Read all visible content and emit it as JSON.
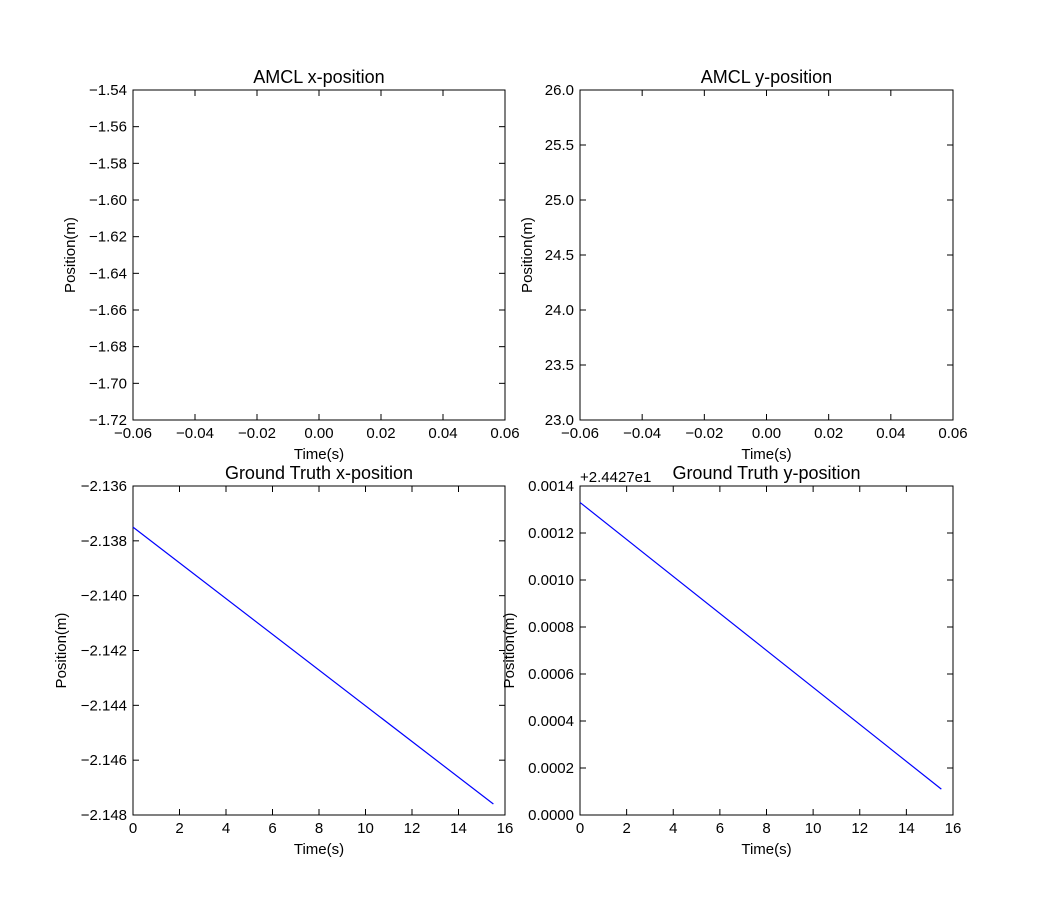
{
  "chart_data": [
    {
      "type": "line",
      "title": "AMCL x-position",
      "xlabel": "Time(s)",
      "ylabel": "Position(m)",
      "xlim": [
        -0.06,
        0.06
      ],
      "ylim": [
        -1.72,
        -1.54
      ],
      "xticks": [
        "−0.06",
        "−0.04",
        "−0.02",
        "0.00",
        "0.02",
        "0.04",
        "0.06"
      ],
      "yticks": [
        "−1.54",
        "−1.56",
        "−1.58",
        "−1.60",
        "−1.62",
        "−1.64",
        "−1.66",
        "−1.68",
        "−1.70",
        "−1.72"
      ],
      "offset_label": "",
      "series": [
        {
          "x": [],
          "y": [],
          "color": "#0000ff"
        }
      ]
    },
    {
      "type": "line",
      "title": "AMCL y-position",
      "xlabel": "Time(s)",
      "ylabel": "Position(m)",
      "xlim": [
        -0.06,
        0.06
      ],
      "ylim": [
        23.0,
        26.0
      ],
      "xticks": [
        "−0.06",
        "−0.04",
        "−0.02",
        "0.00",
        "0.02",
        "0.04",
        "0.06"
      ],
      "yticks": [
        "26.0",
        "25.5",
        "25.0",
        "24.5",
        "24.0",
        "23.5",
        "23.0"
      ],
      "offset_label": "",
      "series": [
        {
          "x": [],
          "y": [],
          "color": "#0000ff"
        }
      ]
    },
    {
      "type": "line",
      "title": "Ground Truth x-position",
      "xlabel": "Time(s)",
      "ylabel": "Position(m)",
      "xlim": [
        0,
        16
      ],
      "ylim": [
        -2.148,
        -2.136
      ],
      "xticks": [
        "0",
        "2",
        "4",
        "6",
        "8",
        "10",
        "12",
        "14",
        "16"
      ],
      "yticks": [
        "−2.136",
        "−2.138",
        "−2.140",
        "−2.142",
        "−2.144",
        "−2.146",
        "−2.148"
      ],
      "offset_label": "",
      "series": [
        {
          "x": [
            0,
            15.5
          ],
          "y": [
            -2.1375,
            -2.1476
          ],
          "color": "#0000ff"
        }
      ]
    },
    {
      "type": "line",
      "title": "Ground Truth y-position",
      "xlabel": "Time(s)",
      "ylabel": "Position(m)",
      "xlim": [
        0,
        16
      ],
      "ylim": [
        0.0,
        0.0014
      ],
      "xticks": [
        "0",
        "2",
        "4",
        "6",
        "8",
        "10",
        "12",
        "14",
        "16"
      ],
      "yticks": [
        "0.0014",
        "0.0012",
        "0.0010",
        "0.0008",
        "0.0006",
        "0.0004",
        "0.0002",
        "0.0000"
      ],
      "offset_label": "+2.4427e1",
      "series": [
        {
          "x": [
            0,
            15.5
          ],
          "y": [
            0.00133,
            0.00011
          ],
          "color": "#0000ff"
        }
      ]
    }
  ]
}
